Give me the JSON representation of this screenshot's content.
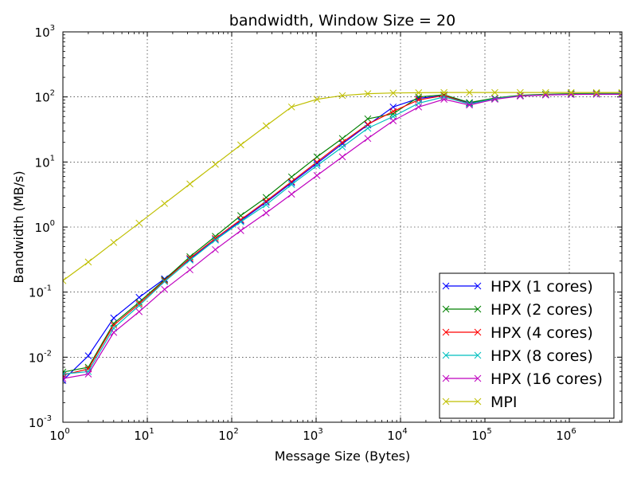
{
  "chart_data": {
    "type": "line",
    "title": "bandwidth, Window Size = 20",
    "xlabel": "Message Size (Bytes)",
    "ylabel": "Bandwidth (MB/s)",
    "xscale": "log",
    "yscale": "log",
    "xlim": [
      1,
      4194304
    ],
    "ylim": [
      0.001,
      1000
    ],
    "xtick_labels": [
      "10^0",
      "10^1",
      "10^2",
      "10^3",
      "10^4",
      "10^5",
      "10^6"
    ],
    "ytick_labels": [
      "10^-3",
      "10^-2",
      "10^-1",
      "10^0",
      "10^1",
      "10^2",
      "10^3"
    ],
    "grid": true,
    "legend_position": "lower right",
    "marker": "x",
    "x": [
      1,
      2,
      4,
      8,
      16,
      32,
      64,
      128,
      256,
      512,
      1024,
      2048,
      4096,
      8192,
      16384,
      32768,
      65536,
      131072,
      262144,
      524288,
      1048576,
      2097152,
      4194304
    ],
    "series": [
      {
        "name": "HPX (1 cores)",
        "color": "#0000ff",
        "values": [
          0.0044,
          0.0105,
          0.04,
          0.083,
          0.16,
          0.32,
          0.64,
          1.25,
          2.4,
          4.8,
          9.5,
          19,
          37,
          70,
          95,
          105,
          80,
          95,
          105,
          108,
          110,
          110,
          110
        ]
      },
      {
        "name": "HPX (2 cores)",
        "color": "#008000",
        "values": [
          0.0059,
          0.007,
          0.033,
          0.07,
          0.155,
          0.35,
          0.72,
          1.5,
          2.85,
          5.9,
          12,
          23,
          46,
          55,
          100,
          108,
          82,
          96,
          106,
          110,
          112,
          113,
          113
        ]
      },
      {
        "name": "HPX (4 cores)",
        "color": "#ff0000",
        "values": [
          0.0053,
          0.0066,
          0.031,
          0.066,
          0.15,
          0.33,
          0.67,
          1.3,
          2.5,
          5,
          10,
          20,
          38,
          60,
          90,
          105,
          78,
          94,
          104,
          108,
          110,
          111,
          111
        ]
      },
      {
        "name": "HPX (8 cores)",
        "color": "#00bfbf",
        "values": [
          0.0055,
          0.006,
          0.028,
          0.062,
          0.145,
          0.31,
          0.63,
          1.2,
          2.2,
          4.5,
          8.8,
          17,
          33,
          50,
          80,
          100,
          78,
          94,
          104,
          108,
          110,
          111,
          111
        ]
      },
      {
        "name": "HPX (16 cores)",
        "color": "#bf00bf",
        "values": [
          0.0047,
          0.0055,
          0.024,
          0.05,
          0.11,
          0.22,
          0.45,
          0.88,
          1.65,
          3.2,
          6.2,
          12,
          23,
          43,
          70,
          92,
          75,
          92,
          103,
          107,
          109,
          110,
          110
        ]
      },
      {
        "name": "MPI",
        "color": "#bfbf00",
        "values": [
          0.15,
          0.29,
          0.58,
          1.15,
          2.3,
          4.6,
          9.2,
          18.3,
          36,
          70,
          92,
          105,
          112,
          115,
          116,
          117,
          117,
          117,
          117,
          117,
          117,
          117,
          117
        ]
      }
    ]
  }
}
